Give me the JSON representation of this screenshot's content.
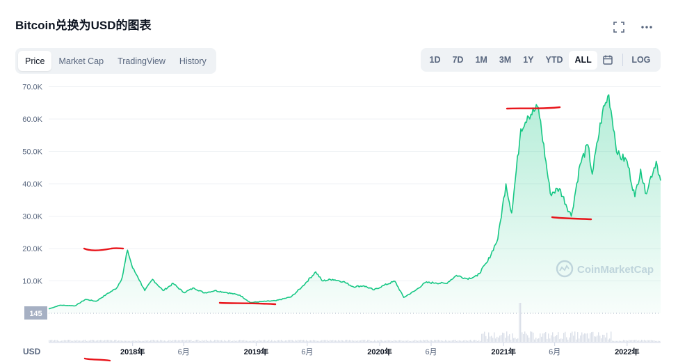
{
  "header": {
    "title": "Bitcoin兑换为USD的图表",
    "expand_icon": "expand-icon",
    "more_icon": "more-icon"
  },
  "tabs": [
    {
      "label": "Price",
      "active": true
    },
    {
      "label": "Market Cap",
      "active": false
    },
    {
      "label": "TradingView",
      "active": false
    },
    {
      "label": "History",
      "active": false
    }
  ],
  "ranges": [
    {
      "label": "1D",
      "active": false
    },
    {
      "label": "7D",
      "active": false
    },
    {
      "label": "1M",
      "active": false
    },
    {
      "label": "3M",
      "active": false
    },
    {
      "label": "1Y",
      "active": false
    },
    {
      "label": "YTD",
      "active": false
    },
    {
      "label": "ALL",
      "active": true
    }
  ],
  "log_label": "LOG",
  "calendar_icon": "calendar-icon",
  "watermark": "CoinMarketCap",
  "currency_label": "USD",
  "colors": {
    "line": "#16c784",
    "annotation": "#e8141a",
    "marker": "#a6b0c3"
  },
  "chart_data": {
    "type": "area",
    "title": "Bitcoin兑换为USD的图表",
    "ylim": [
      0,
      70000
    ],
    "y_ticks": [
      {
        "label": "70.0K",
        "value": 70000
      },
      {
        "label": "60.0K",
        "value": 60000
      },
      {
        "label": "50.0K",
        "value": 50000
      },
      {
        "label": "40.0K",
        "value": 40000
      },
      {
        "label": "30.0K",
        "value": 30000
      },
      {
        "label": "20.0K",
        "value": 20000
      },
      {
        "label": "10.0K",
        "value": 10000
      }
    ],
    "x_ticks": [
      {
        "label": "2018年",
        "date": "2018-01-01"
      },
      {
        "label": "6月",
        "date": "2018-06-01"
      },
      {
        "label": "2019年",
        "date": "2019-01-01"
      },
      {
        "label": "6月",
        "date": "2019-06-01"
      },
      {
        "label": "2020年",
        "date": "2020-01-01"
      },
      {
        "label": "6月",
        "date": "2020-06-01"
      },
      {
        "label": "2021年",
        "date": "2021-01-01"
      },
      {
        "label": "6月",
        "date": "2021-06-01"
      },
      {
        "label": "2022年",
        "date": "2022-01-01"
      }
    ],
    "marker_label": "145",
    "series": [
      {
        "x": [
          "2017-04-28",
          "2017-06-01",
          "2017-07-15",
          "2017-08-15",
          "2017-09-15",
          "2017-10-15",
          "2017-11-15",
          "2017-12-01",
          "2017-12-17",
          "2018-01-01",
          "2018-01-15",
          "2018-02-06",
          "2018-03-01",
          "2018-04-01",
          "2018-05-01",
          "2018-06-01",
          "2018-07-01",
          "2018-08-01",
          "2018-09-01",
          "2018-10-01",
          "2018-11-14",
          "2018-12-15",
          "2019-01-15",
          "2019-03-01",
          "2019-04-15",
          "2019-05-15",
          "2019-06-26",
          "2019-07-15",
          "2019-08-15",
          "2019-09-15",
          "2019-10-15",
          "2019-11-15",
          "2019-12-15",
          "2020-01-15",
          "2020-02-15",
          "2020-03-12",
          "2020-04-15",
          "2020-05-15",
          "2020-06-15",
          "2020-07-15",
          "2020-08-15",
          "2020-09-15",
          "2020-10-15",
          "2020-11-15",
          "2020-12-15",
          "2021-01-08",
          "2021-01-25",
          "2021-02-21",
          "2021-03-13",
          "2021-04-14",
          "2021-05-19",
          "2021-06-15",
          "2021-07-20",
          "2021-08-15",
          "2021-09-07",
          "2021-09-20",
          "2021-10-20",
          "2021-11-08",
          "2021-12-04",
          "2022-01-01",
          "2022-01-24",
          "2022-02-10",
          "2022-02-24",
          "2022-03-28",
          "2022-04-10"
        ],
        "y": [
          1350,
          2500,
          2300,
          4300,
          3700,
          5800,
          7800,
          11000,
          19500,
          14000,
          11500,
          7000,
          10500,
          7000,
          9200,
          6400,
          7800,
          6300,
          7000,
          6500,
          5600,
          3300,
          3600,
          3900,
          5100,
          8000,
          12800,
          10000,
          10500,
          9800,
          8200,
          8500,
          7200,
          8700,
          9900,
          4900,
          7000,
          9500,
          9400,
          9200,
          11700,
          10700,
          11500,
          16000,
          23000,
          40000,
          31000,
          57000,
          61000,
          63500,
          37000,
          38500,
          30000,
          46000,
          52000,
          43000,
          62000,
          67500,
          49000,
          47000,
          36000,
          44500,
          37000,
          47000,
          41000
        ]
      }
    ]
  }
}
